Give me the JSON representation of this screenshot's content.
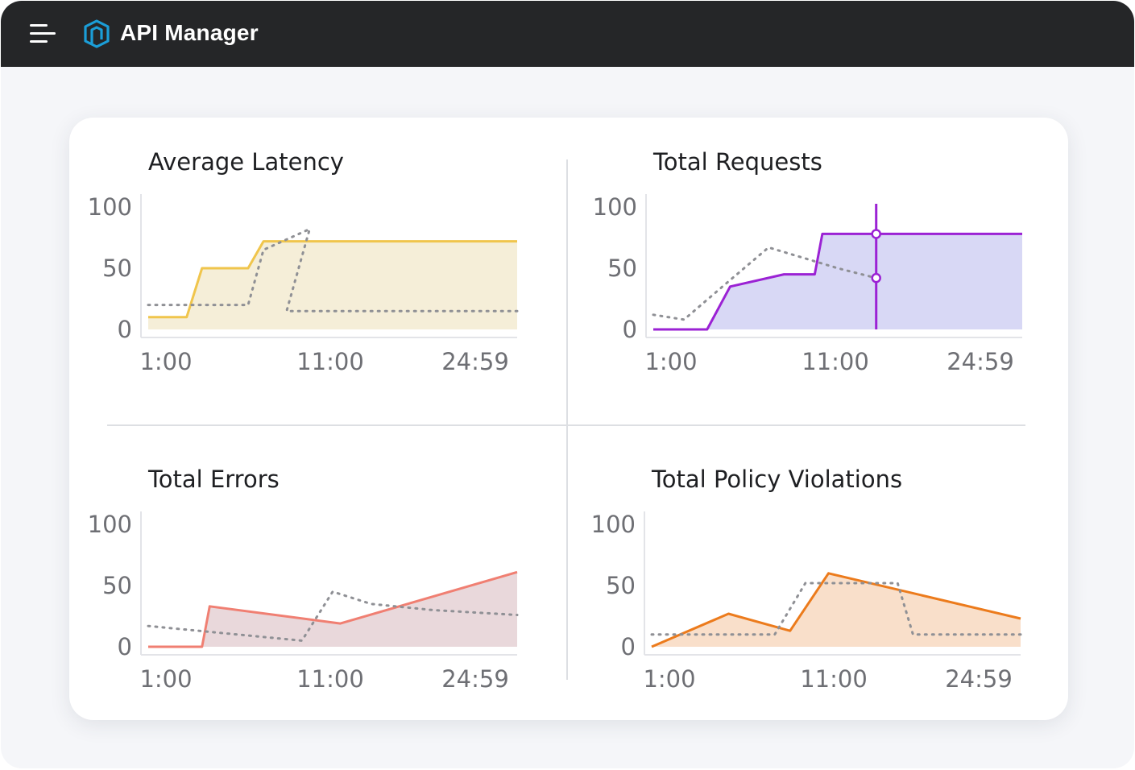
{
  "app": {
    "title": "API Manager",
    "menu_icon": "hamburger-menu-icon",
    "logo_icon": "api-manager-logo-icon",
    "brand_color": "#1b9ed8"
  },
  "chart_data": [
    {
      "type": "area",
      "title": "Average Latency",
      "x_ticks": [
        "1:00",
        "11:00",
        "24:59"
      ],
      "y_ticks": [
        "100",
        "50",
        "0"
      ],
      "ylim": [
        0,
        100
      ],
      "color": "#f0c54c",
      "fill": "#f5eed8",
      "series": [
        {
          "x": [
            0,
            2.5,
            3.5,
            6.5,
            7.5,
            9,
            24
          ],
          "y": [
            10,
            10,
            50,
            50,
            72,
            72,
            72
          ]
        }
      ],
      "baseline": {
        "x": [
          0,
          6.5,
          7.5,
          10.5,
          9,
          24
        ],
        "y": [
          20,
          20,
          65,
          82,
          15,
          15
        ]
      }
    },
    {
      "type": "area",
      "title": "Total Requests",
      "x_ticks": [
        "1:00",
        "11:00",
        "24:59"
      ],
      "y_ticks": [
        "100",
        "50",
        "0"
      ],
      "ylim": [
        0,
        100
      ],
      "color": "#9b22d4",
      "fill": "#d8d8f5",
      "series": [
        {
          "x": [
            0,
            3.5,
            5,
            8.5,
            10.5,
            11,
            24
          ],
          "y": [
            0,
            0,
            35,
            45,
            45,
            78,
            78
          ]
        }
      ],
      "baseline": {
        "x": [
          0,
          2,
          4.5,
          7.5,
          12,
          14.5
        ],
        "y": [
          12,
          8,
          35,
          67,
          50,
          42
        ]
      },
      "cursor": {
        "x": 14.5,
        "values": [
          78,
          42
        ]
      }
    },
    {
      "type": "area",
      "title": "Total Errors",
      "x_ticks": [
        "1:00",
        "11:00",
        "24:59"
      ],
      "y_ticks": [
        "100",
        "50",
        "0"
      ],
      "ylim": [
        0,
        100
      ],
      "color": "#f07f72",
      "fill": "#e9d8db",
      "series": [
        {
          "x": [
            0,
            3.5,
            4,
            12.5,
            24
          ],
          "y": [
            0,
            0,
            33,
            19,
            61
          ]
        }
      ],
      "baseline": {
        "x": [
          0,
          10,
          12,
          14.5,
          18.5,
          24
        ],
        "y": [
          17,
          5,
          45,
          35,
          30,
          26
        ]
      }
    },
    {
      "type": "area",
      "title": "Total Policy Violations",
      "x_ticks": [
        "1:00",
        "11:00",
        "24:59"
      ],
      "y_ticks": [
        "100",
        "50",
        "0"
      ],
      "ylim": [
        0,
        100
      ],
      "color": "#ec7b1c",
      "fill": "#f9dfca",
      "series": [
        {
          "x": [
            0,
            5,
            9,
            11.5,
            24
          ],
          "y": [
            0,
            27,
            13,
            60,
            23
          ]
        }
      ],
      "baseline": {
        "x": [
          0,
          8,
          10,
          16,
          17,
          24
        ],
        "y": [
          10,
          10,
          52,
          52,
          10,
          10
        ]
      }
    }
  ]
}
